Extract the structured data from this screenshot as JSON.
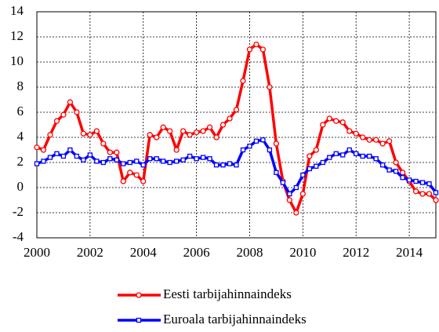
{
  "chart_data": {
    "type": "line",
    "x": [
      2000,
      2000.25,
      2000.5,
      2000.75,
      2001,
      2001.25,
      2001.5,
      2001.75,
      2002,
      2002.25,
      2002.5,
      2002.75,
      2003,
      2003.25,
      2003.5,
      2003.75,
      2004,
      2004.25,
      2004.5,
      2004.75,
      2005,
      2005.25,
      2005.5,
      2005.75,
      2006,
      2006.25,
      2006.5,
      2006.75,
      2007,
      2007.25,
      2007.5,
      2007.75,
      2008,
      2008.25,
      2008.5,
      2008.75,
      2009,
      2009.25,
      2009.5,
      2009.75,
      2010,
      2010.25,
      2010.5,
      2010.75,
      2011,
      2011.25,
      2011.5,
      2011.75,
      2012,
      2012.25,
      2012.5,
      2012.75,
      2013,
      2013.25,
      2013.5,
      2013.75,
      2014,
      2014.25,
      2014.5,
      2014.75,
      2015
    ],
    "series": [
      {
        "name": "Eesti tarbijahinnaindeks",
        "color": "#ff0000",
        "marker": "circle",
        "values": [
          3.2,
          3.0,
          4.2,
          5.3,
          5.8,
          6.8,
          6.0,
          4.3,
          4.2,
          4.5,
          3.5,
          2.8,
          2.8,
          0.5,
          1.2,
          1.0,
          0.5,
          4.2,
          4.0,
          4.8,
          4.5,
          3.0,
          4.5,
          4.2,
          4.4,
          4.5,
          4.8,
          4.0,
          5.0,
          5.5,
          6.2,
          8.5,
          11.0,
          11.4,
          11.0,
          8.0,
          3.5,
          0.5,
          -1.0,
          -2.0,
          -0.5,
          2.5,
          3.0,
          5.0,
          5.5,
          5.3,
          5.2,
          4.5,
          4.3,
          4.0,
          3.8,
          3.8,
          3.5,
          3.7,
          2.0,
          1.2,
          0.5,
          -0.3,
          -0.5,
          -0.5,
          -1.0
        ]
      },
      {
        "name": "Euroala tarbijahinnaindeks",
        "color": "#0000ff",
        "marker": "square",
        "values": [
          1.9,
          2.1,
          2.4,
          2.7,
          2.5,
          3.0,
          2.5,
          2.2,
          2.6,
          2.1,
          2.0,
          2.3,
          2.2,
          1.9,
          2.0,
          2.1,
          1.8,
          2.3,
          2.3,
          2.1,
          2.0,
          2.1,
          2.2,
          2.5,
          2.3,
          2.4,
          2.3,
          1.8,
          1.8,
          1.9,
          1.8,
          3.0,
          3.3,
          3.7,
          3.8,
          3.0,
          1.2,
          0.4,
          -0.5,
          0.0,
          1.0,
          1.5,
          1.7,
          2.0,
          2.4,
          2.7,
          2.6,
          3.0,
          2.7,
          2.5,
          2.5,
          2.3,
          1.8,
          1.4,
          1.3,
          0.8,
          0.6,
          0.5,
          0.4,
          0.3,
          -0.4
        ]
      }
    ],
    "xlim": [
      2000,
      2015
    ],
    "xticks": [
      2000,
      2002,
      2004,
      2006,
      2008,
      2010,
      2012,
      2014
    ],
    "ylim": [
      -4,
      14
    ],
    "yticks": [
      -4,
      -2,
      0,
      2,
      4,
      6,
      8,
      10,
      12,
      14
    ],
    "grid": true,
    "legend": "bottom"
  }
}
